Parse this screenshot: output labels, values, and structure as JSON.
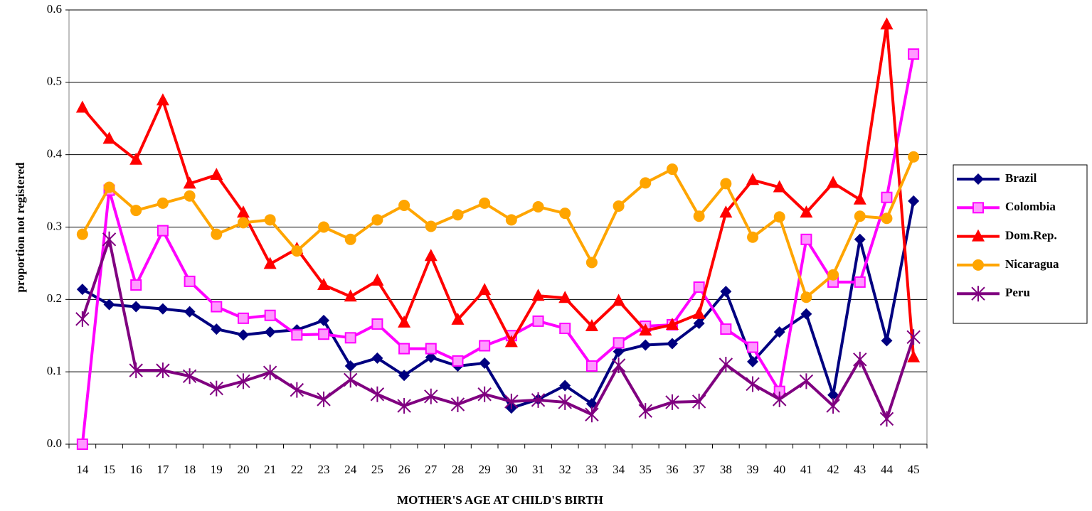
{
  "chart_data": {
    "type": "line",
    "x_label": "MOTHER'S AGE AT CHILD'S BIRTH",
    "y_label": "proportion not registered",
    "categories": [
      14,
      15,
      16,
      17,
      18,
      19,
      20,
      21,
      22,
      23,
      24,
      25,
      26,
      27,
      28,
      29,
      30,
      31,
      32,
      33,
      34,
      35,
      36,
      37,
      38,
      39,
      40,
      41,
      42,
      43,
      44,
      45
    ],
    "ylim": [
      0,
      0.6
    ],
    "yticks": [
      {
        "value": 0,
        "label": "0.0"
      },
      0.1,
      0.2,
      0.3,
      0.4,
      0.5,
      0.6
    ],
    "grid": true,
    "legend": "right",
    "series": [
      {
        "name": "Brazil",
        "color": "#000080",
        "marker": "diamond",
        "values": [
          0.214,
          0.193,
          0.19,
          0.187,
          0.183,
          0.159,
          0.151,
          0.155,
          0.158,
          0.171,
          0.108,
          0.119,
          0.095,
          0.12,
          0.108,
          0.112,
          0.05,
          0.062,
          0.081,
          0.056,
          0.128,
          0.137,
          0.139,
          0.167,
          0.211,
          0.114,
          0.155,
          0.18,
          0.068,
          0.283,
          0.143,
          0.336
        ]
      },
      {
        "name": "Colombia",
        "color": "#FF00FF",
        "marker": "square",
        "values": [
          0.0,
          0.351,
          0.22,
          0.295,
          0.225,
          0.19,
          0.174,
          0.178,
          0.151,
          0.152,
          0.147,
          0.166,
          0.132,
          0.132,
          0.115,
          0.136,
          0.15,
          0.17,
          0.16,
          0.108,
          0.14,
          0.163,
          0.165,
          0.217,
          0.159,
          0.134,
          0.073,
          0.283,
          0.224,
          0.224,
          0.341,
          0.539
        ]
      },
      {
        "name": "Dom.Rep.",
        "color": "#FF0000",
        "marker": "triangle",
        "values": [
          0.465,
          0.422,
          0.393,
          0.475,
          0.36,
          0.372,
          0.32,
          0.249,
          0.27,
          0.22,
          0.204,
          0.226,
          0.168,
          0.26,
          0.172,
          0.213,
          0.141,
          0.205,
          0.202,
          0.163,
          0.198,
          0.157,
          0.165,
          0.18,
          0.32,
          0.365,
          0.355,
          0.32,
          0.361,
          0.338,
          0.58,
          0.12
        ]
      },
      {
        "name": "Nicaragua",
        "color": "#FFA500",
        "marker": "circle",
        "values": [
          0.29,
          0.355,
          0.323,
          0.333,
          0.343,
          0.29,
          0.306,
          0.31,
          0.267,
          0.3,
          0.283,
          0.31,
          0.33,
          0.301,
          0.317,
          0.333,
          0.31,
          0.328,
          0.319,
          0.251,
          0.329,
          0.361,
          0.38,
          0.315,
          0.36,
          0.286,
          0.314,
          0.203,
          0.234,
          0.315,
          0.312,
          0.397
        ]
      },
      {
        "name": "Peru",
        "color": "#800080",
        "marker": "star",
        "values": [
          0.173,
          0.283,
          0.102,
          0.102,
          0.094,
          0.077,
          0.087,
          0.099,
          0.075,
          0.062,
          0.089,
          0.069,
          0.053,
          0.066,
          0.055,
          0.069,
          0.059,
          0.061,
          0.058,
          0.041,
          0.109,
          0.046,
          0.058,
          0.059,
          0.11,
          0.083,
          0.062,
          0.087,
          0.053,
          0.117,
          0.035,
          0.148
        ]
      }
    ]
  }
}
